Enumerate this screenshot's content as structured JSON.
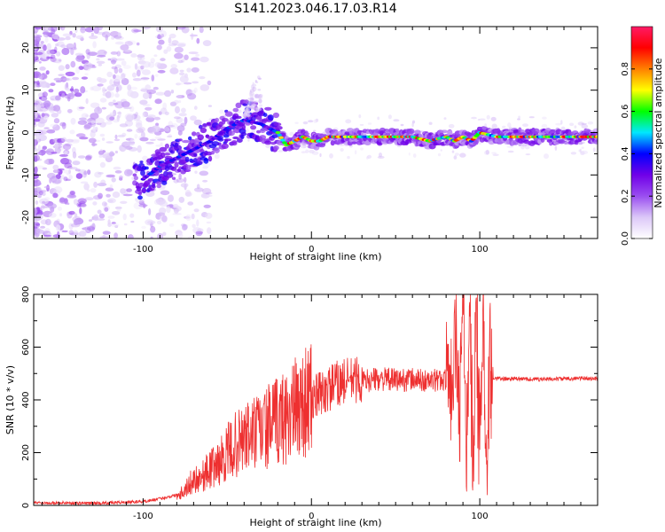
{
  "title": "S141.2023.046.17.03.R14",
  "colors": {
    "snr_line": "#ee3030",
    "axis": "#000000",
    "colormap": [
      "#ffffff",
      "#dcc8f8",
      "#9a4ef0",
      "#7000e8",
      "#0000ff",
      "#00e8ff",
      "#00ff00",
      "#ffff00",
      "#ff8000",
      "#ff0000",
      "#ff1a66"
    ]
  },
  "chart_data": [
    {
      "type": "heatmap",
      "title": "S141.2023.046.17.03.R14",
      "xlabel": "Height of straight line (km)",
      "ylabel": "Frequency (Hz)",
      "xlim": [
        -165,
        170
      ],
      "ylim": [
        -25,
        25
      ],
      "xticks": [
        -100,
        0,
        100
      ],
      "xtick_labels": [
        "-100",
        "0",
        "100"
      ],
      "yticks": [
        -20,
        -10,
        0,
        10,
        20
      ],
      "ytick_labels": [
        "-20",
        "-10",
        "0",
        "10",
        "20"
      ],
      "colorbar": {
        "label": "Normalized spectral amplitude",
        "range": [
          0,
          1
        ],
        "ticks": [
          0.0,
          0.2,
          0.4,
          0.6,
          0.8
        ],
        "tick_labels": [
          "0.0",
          "0.2",
          "0.4",
          "0.6",
          "0.8"
        ]
      },
      "ridge": [
        [
          -100,
          -11
        ],
        [
          -90,
          -8
        ],
        [
          -80,
          -6
        ],
        [
          -70,
          -4
        ],
        [
          -60,
          -2
        ],
        [
          -50,
          1
        ],
        [
          -40,
          3
        ],
        [
          -30,
          2
        ],
        [
          -20,
          0
        ],
        [
          -15,
          -3
        ],
        [
          -10,
          -2
        ],
        [
          -5,
          -1
        ],
        [
          0,
          -2
        ],
        [
          5,
          -2
        ],
        [
          10,
          -1
        ],
        [
          20,
          -1
        ],
        [
          40,
          -1
        ],
        [
          60,
          -1
        ],
        [
          70,
          -2
        ],
        [
          80,
          -1
        ],
        [
          85,
          -2
        ],
        [
          90,
          -1
        ],
        [
          95,
          -2
        ],
        [
          100,
          0
        ],
        [
          110,
          -1
        ],
        [
          130,
          -1
        ],
        [
          150,
          -1
        ],
        [
          170,
          -1
        ]
      ]
    },
    {
      "type": "line",
      "xlabel": "Height of straight line (km)",
      "ylabel": "SNR (10 * v/v)",
      "xlim": [
        -165,
        170
      ],
      "ylim": [
        0,
        800
      ],
      "xticks": [
        -100,
        0,
        100
      ],
      "xtick_labels": [
        "-100",
        "0",
        "100"
      ],
      "yticks": [
        0,
        200,
        400,
        600,
        800
      ],
      "ytick_labels": [
        "0",
        "200",
        "400",
        "600",
        "800"
      ],
      "series": [
        {
          "name": "SNR",
          "x": [
            -165,
            -150,
            -130,
            -110,
            -100,
            -90,
            -80,
            -75,
            -70,
            -65,
            -60,
            -55,
            -50,
            -45,
            -40,
            -35,
            -30,
            -25,
            -20,
            -15,
            -10,
            -5,
            0,
            5,
            10,
            15,
            20,
            25,
            30,
            40,
            50,
            60,
            70,
            80,
            82,
            84,
            86,
            88,
            90,
            92,
            94,
            96,
            98,
            100,
            102,
            104,
            106,
            108,
            120,
            140,
            160,
            170
          ],
          "values": [
            10,
            10,
            8,
            12,
            15,
            25,
            40,
            60,
            100,
            110,
            140,
            160,
            200,
            230,
            250,
            270,
            280,
            300,
            320,
            340,
            360,
            390,
            400,
            420,
            440,
            460,
            470,
            480,
            470,
            480,
            475,
            478,
            470,
            480,
            560,
            380,
            700,
            300,
            790,
            250,
            650,
            200,
            720,
            150,
            760,
            120,
            500,
            480,
            480,
            478,
            482,
            480
          ]
        }
      ]
    }
  ]
}
